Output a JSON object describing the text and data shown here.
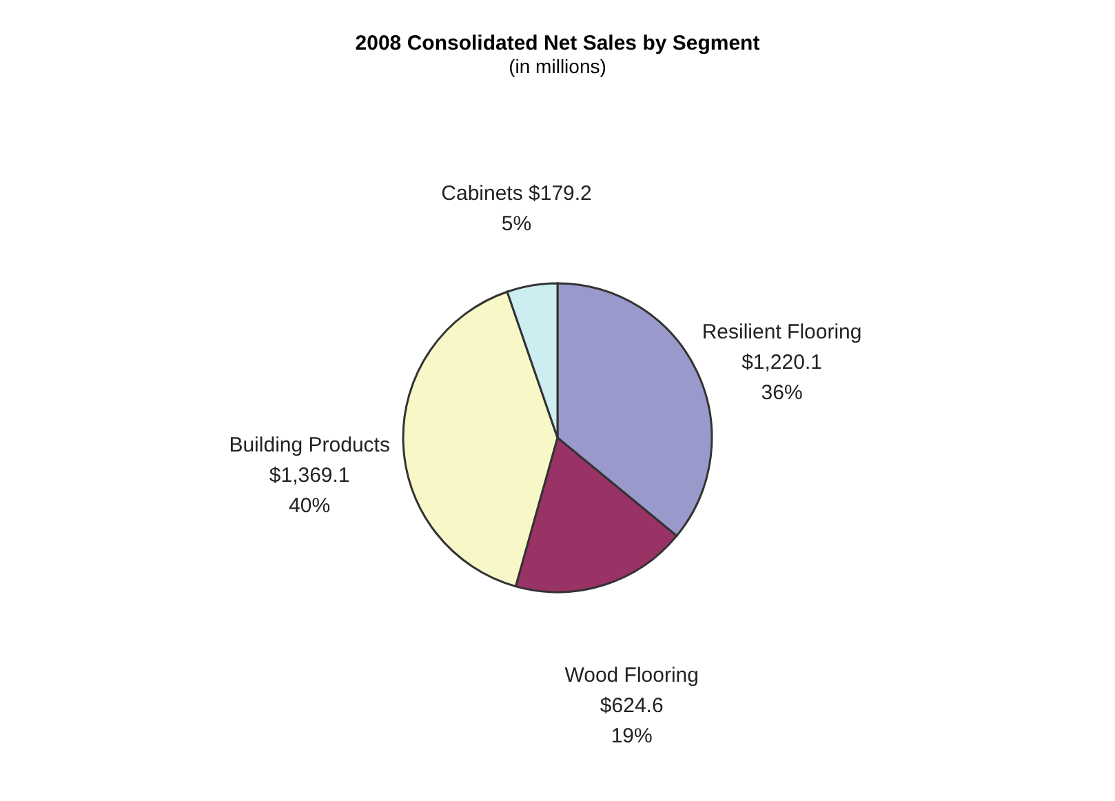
{
  "chart_data": {
    "type": "pie",
    "title": "2008 Consolidated Net Sales by Segment",
    "subtitle": "(in millions)",
    "categories": [
      "Resilient Flooring",
      "Wood Flooring",
      "Building Products",
      "Cabinets"
    ],
    "values": [
      1220.1,
      624.6,
      1369.1,
      179.2
    ],
    "colors": [
      "#9999cc",
      "#993366",
      "#f7f7c8",
      "#cceef0"
    ],
    "value_labels": [
      "$1,220.1\n36%",
      "$624.6\n19%",
      "$1,369.1\n40%",
      "$179.2\n5%"
    ],
    "legend": false
  }
}
